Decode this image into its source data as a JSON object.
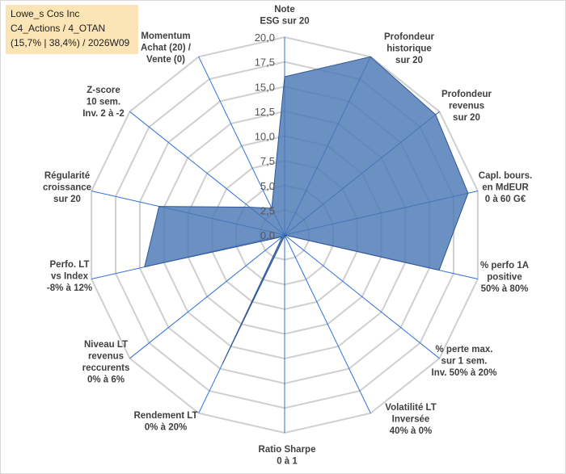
{
  "title_box": {
    "line1": "Lowe_s Cos Inc",
    "line2": "C4_Actions / 4_OTAN",
    "line3": "(15,7% | 38,4%) / 2026W09"
  },
  "chart_data": {
    "type": "radar",
    "rmin": 0,
    "rmax": 20,
    "tick_step": 2.5,
    "tick_labels": [
      "0,0",
      "2,5",
      "5,0",
      "7,5",
      "10,0",
      "12,5",
      "15,0",
      "17,5",
      "20,0"
    ],
    "categories": [
      [
        "Note",
        "ESG sur 20"
      ],
      [
        "Profondeur",
        "historique",
        "sur 20"
      ],
      [
        "Profondeur",
        "revenus",
        "sur 20"
      ],
      [
        "Capl. bours.",
        "en MdEUR",
        "0 à 60 G€"
      ],
      [
        "% perfo 1A",
        "positive",
        "50% à 80%"
      ],
      [
        "% perte max.",
        "sur 1 sem.",
        "Inv. 50% à 20%"
      ],
      [
        "Volatilité LT",
        "Inversée",
        "40% à 0%"
      ],
      [
        "Ratio Sharpe",
        "0 à 1"
      ],
      [
        "Rendement LT",
        "0% à 20%"
      ],
      [
        "Niveau LT",
        "revenus",
        "reccurents",
        "0% à 6%"
      ],
      [
        "Perfo. LT",
        "vs Index",
        "-8% à 12%"
      ],
      [
        "Régularité",
        "croissance",
        "sur 20"
      ],
      [
        "Z-score",
        "10 sem.",
        "Inv. 2 à -2"
      ],
      [
        "Momentum",
        "Achat (20) /",
        "Vente (0)"
      ]
    ],
    "series": [
      {
        "name": "Lowe_s Cos Inc",
        "values": [
          16.0,
          20.0,
          19.5,
          19.0,
          16.0,
          0.0,
          0.2,
          0.1,
          14.5,
          0.3,
          14.5,
          13.0,
          4.5,
          3.0
        ],
        "fill": "#4a78b5",
        "fill_opacity": 0.82,
        "stroke": "#2f5597"
      }
    ]
  }
}
